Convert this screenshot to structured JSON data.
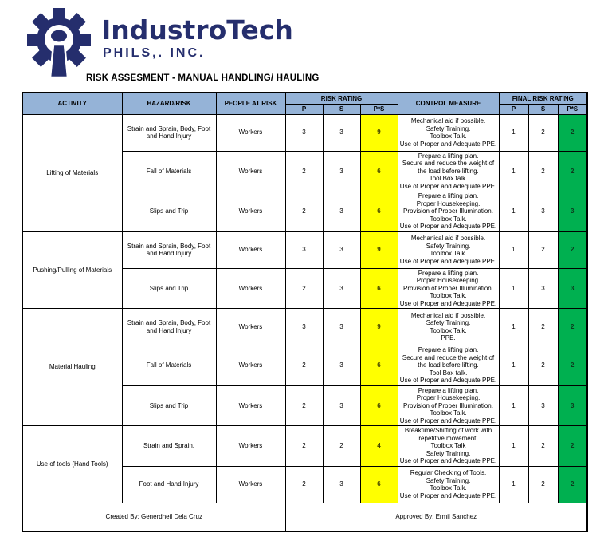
{
  "logo": {
    "name": "IndustroTech",
    "subtitle": "PHILS,. INC."
  },
  "title": "RISK ASSESMENT - MANUAL HANDLING/ HAULING",
  "colors": {
    "navy": "#252e6d",
    "header_bg": "#95B3D7",
    "rating_bg": "#FFFF00",
    "final_bg": "#00B050"
  },
  "table": {
    "headers": {
      "activity": "ACTIVITY",
      "hazard": "HAZARD/RISK",
      "people": "PEOPLE AT RISK",
      "risk_rating": "RISK RATING",
      "control": "CONTROL MEASURE",
      "final_risk_rating": "FINAL RISK RATING",
      "p": "P",
      "s": "S",
      "ps": "P*S"
    },
    "groups": [
      {
        "activity": "Lifting of Materials",
        "rows": [
          {
            "hazard": "Strain and Sprain, Body, Foot and Hand Injury",
            "people": "Workers",
            "p": "3",
            "s": "3",
            "ps": "9",
            "control": [
              "Mechanical aid if possible.",
              "Safety Training.",
              "Toolbox Talk.",
              "Use of Proper and Adequate PPE."
            ],
            "fp": "1",
            "fs": "2",
            "fps": "2"
          },
          {
            "hazard": "Fall of Materials",
            "people": "Workers",
            "p": "2",
            "s": "3",
            "ps": "6",
            "control": [
              "Prepare a lifting plan.",
              "Secure and reduce the weight of the load before lifting.",
              "Tool Box talk.",
              "Use of Proper and Adequate PPE."
            ],
            "fp": "1",
            "fs": "2",
            "fps": "2"
          },
          {
            "hazard": "Slips and Trip",
            "people": "Workers",
            "p": "2",
            "s": "3",
            "ps": "6",
            "control": [
              "Prepare a lifting plan.",
              "Proper Housekeeping.",
              "Provision of Proper Illumination.",
              "Toolbox Talk.",
              "Use of Proper and Adequate PPE."
            ],
            "fp": "1",
            "fs": "3",
            "fps": "3"
          }
        ]
      },
      {
        "activity": "Pushing/Pulling of Materials",
        "rows": [
          {
            "hazard": "Strain and Sprain, Body, Foot and Hand Injury",
            "people": "Workers",
            "p": "3",
            "s": "3",
            "ps": "9",
            "control": [
              "Mechanical aid if possible.",
              "Safety Training.",
              "Toolbox Talk.",
              "Use of Proper and Adequate PPE."
            ],
            "fp": "1",
            "fs": "2",
            "fps": "2"
          },
          {
            "hazard": "Slips and Trip",
            "people": "Workers",
            "p": "2",
            "s": "3",
            "ps": "6",
            "control": [
              "Prepare a lifting plan.",
              "Proper Housekeeping.",
              "Provision of Proper Illumination.",
              "Toolbox Talk.",
              "Use of Proper and Adequate PPE."
            ],
            "fp": "1",
            "fs": "3",
            "fps": "3"
          }
        ]
      },
      {
        "activity": "Material Hauling",
        "rows": [
          {
            "hazard": "Strain and Sprain, Body, Foot and Hand Injury",
            "people": "Workers",
            "p": "3",
            "s": "3",
            "ps": "9",
            "control": [
              "Mechanical aid if possible.",
              "Safety Training.",
              "Toolbox Talk.",
              "PPE."
            ],
            "fp": "1",
            "fs": "2",
            "fps": "2"
          },
          {
            "hazard": "Fall of Materials",
            "people": "Workers",
            "p": "2",
            "s": "3",
            "ps": "6",
            "control": [
              "Prepare a lifting plan.",
              "Secure and reduce the weight of the load before lifting.",
              "Tool Box talk.",
              "Use of Proper and Adequate PPE."
            ],
            "fp": "1",
            "fs": "2",
            "fps": "2"
          },
          {
            "hazard": "Slips and Trip",
            "people": "Workers",
            "p": "2",
            "s": "3",
            "ps": "6",
            "control": [
              "Prepare a lifting plan.",
              "Proper Housekeeping.",
              "Provision of Proper Illumination.",
              "Toolbox Talk.",
              "Use of Proper and Adequate PPE."
            ],
            "fp": "1",
            "fs": "3",
            "fps": "3"
          }
        ]
      },
      {
        "activity": "Use of tools (Hand Tools)",
        "rows": [
          {
            "hazard": "Strain and Sprain.",
            "people": "Workers",
            "p": "2",
            "s": "2",
            "ps": "4",
            "control": [
              "Breaktime/Shifting of work with repetitive movement.",
              "Toolbox Talk",
              "Safety Training.",
              "Use of Proper and Adequate PPE."
            ],
            "fp": "1",
            "fs": "2",
            "fps": "2"
          },
          {
            "hazard": "Foot and Hand Injury",
            "people": "Workers",
            "p": "2",
            "s": "3",
            "ps": "6",
            "control": [
              "Regular Checking of Tools.",
              "Safety Training.",
              "Toolbox Talk.",
              "Use of Proper and Adequate PPE."
            ],
            "fp": "1",
            "fs": "2",
            "fps": "2"
          }
        ]
      }
    ],
    "footer": {
      "created_by": "Created By: Generdheil Dela Cruz",
      "approved_by": "Approved By: Ermil Sanchez"
    }
  }
}
